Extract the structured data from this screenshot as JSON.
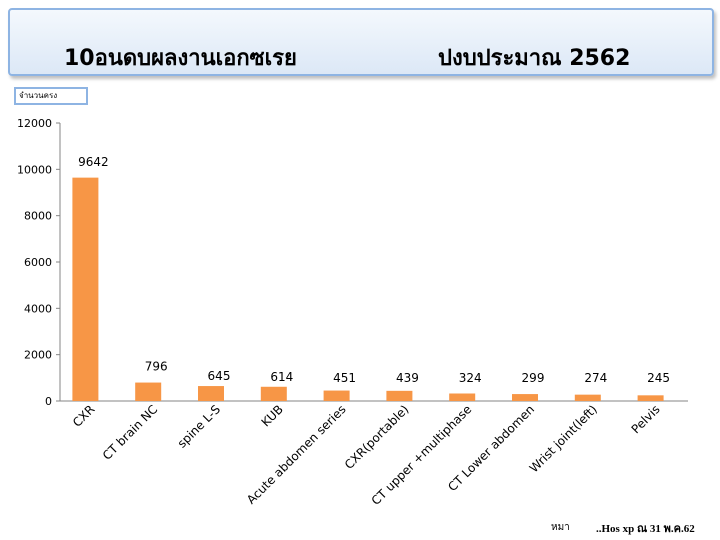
{
  "header": {
    "title": "10อนดบผลงานเอกซเรย",
    "fiscal_year": "ปงบประมาณ  2562"
  },
  "footer": {
    "author": "หมา",
    "source": "..Hos xp ณ 31 พ.ค.62"
  },
  "chart_data": {
    "type": "bar",
    "ylabel": "จำนวนครง",
    "categories": [
      "CXR",
      "CT brain NC",
      "spine L-S",
      "KUB",
      "Acute abdomen series",
      "CXR(portable)",
      "CT upper +multiphase",
      "CT Lower abdomen",
      "Wrist joint(left)",
      "Pelvis"
    ],
    "values": [
      9642,
      796,
      645,
      614,
      451,
      439,
      324,
      299,
      274,
      245
    ],
    "data_labels": [
      "9642",
      "796",
      "645",
      "614",
      "451",
      "439",
      "324",
      "299",
      "274",
      "245"
    ],
    "ylim": [
      0,
      12000
    ],
    "yticks": [
      0,
      2000,
      4000,
      6000,
      8000,
      10000,
      12000
    ],
    "grid": false,
    "legend": "none",
    "bar_color": "#f79646"
  }
}
